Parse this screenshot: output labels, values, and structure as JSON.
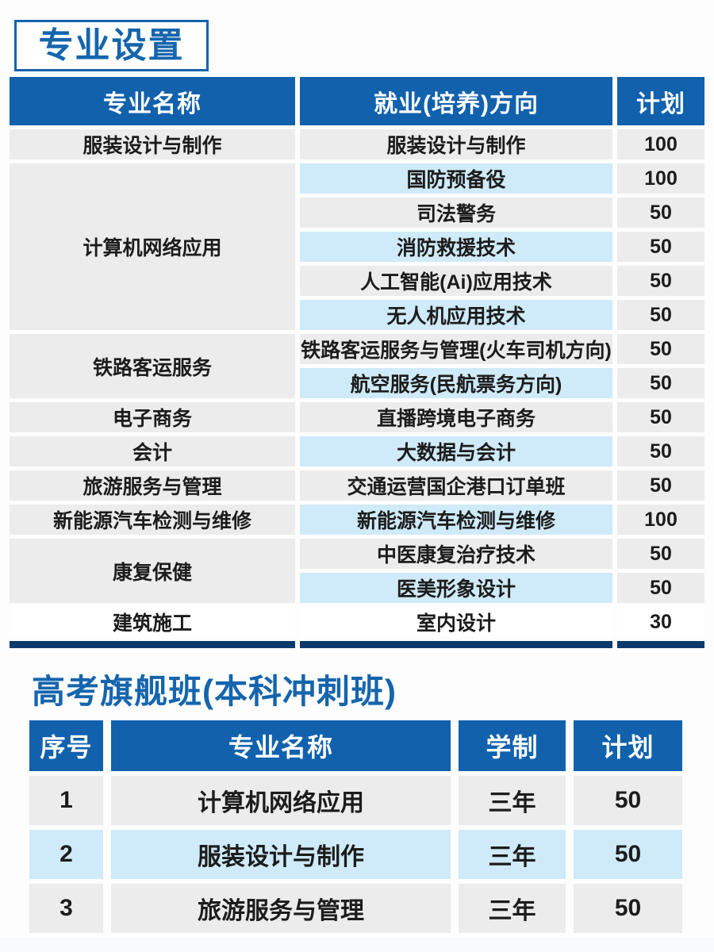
{
  "page": {
    "title1": "专业设置",
    "title2": "高考旗舰班(本科冲刺班)"
  },
  "colors": {
    "header_blue": "#1161ad",
    "title_blue": "#1565ad",
    "navy_bar": "#0d3a6d",
    "light_blue": "#cfeaf8",
    "light_gray": "#ececec"
  },
  "table1": {
    "headers": [
      "专业名称",
      "就业(培养)方向",
      "计划"
    ],
    "groups": [
      {
        "major": "服装设计与制作",
        "rows": [
          {
            "direction": "服装设计与制作",
            "plan": "100",
            "highlight": false
          }
        ]
      },
      {
        "major": "计算机网络应用",
        "rows": [
          {
            "direction": "国防预备役",
            "plan": "100",
            "highlight": true
          },
          {
            "direction": "司法警务",
            "plan": "50",
            "highlight": false
          },
          {
            "direction": "消防救援技术",
            "plan": "50",
            "highlight": true
          },
          {
            "direction": "人工智能(Ai)应用技术",
            "plan": "50",
            "highlight": false
          },
          {
            "direction": "无人机应用技术",
            "plan": "50",
            "highlight": true
          }
        ]
      },
      {
        "major": "铁路客运服务",
        "rows": [
          {
            "direction": "铁路客运服务与管理(火车司机方向)",
            "plan": "50",
            "highlight": false
          },
          {
            "direction": "航空服务(民航票务方向)",
            "plan": "50",
            "highlight": true
          }
        ]
      },
      {
        "major": "电子商务",
        "rows": [
          {
            "direction": "直播跨境电子商务",
            "plan": "50",
            "highlight": false
          }
        ]
      },
      {
        "major": "会计",
        "rows": [
          {
            "direction": "大数据与会计",
            "plan": "50",
            "highlight": true
          }
        ]
      },
      {
        "major": "旅游服务与管理",
        "rows": [
          {
            "direction": "交通运营国企港口订单班",
            "plan": "50",
            "highlight": false
          }
        ]
      },
      {
        "major": "新能源汽车检测与维修",
        "rows": [
          {
            "direction": "新能源汽车检测与维修",
            "plan": "100",
            "highlight": true
          }
        ]
      },
      {
        "major": "康复保健",
        "rows": [
          {
            "direction": "中医康复治疗技术",
            "plan": "50",
            "highlight": false
          },
          {
            "direction": "医美形象设计",
            "plan": "50",
            "highlight": true
          }
        ]
      },
      {
        "major": "建筑施工",
        "white": true,
        "rows": [
          {
            "direction": "室内设计",
            "plan": "30",
            "highlight": false
          }
        ]
      }
    ]
  },
  "table2": {
    "headers": [
      "序号",
      "专业名称",
      "学制",
      "计划"
    ],
    "rows": [
      {
        "no": "1",
        "major": "计算机网络应用",
        "duration": "三年",
        "plan": "50",
        "highlight": false
      },
      {
        "no": "2",
        "major": "服装设计与制作",
        "duration": "三年",
        "plan": "50",
        "highlight": true
      },
      {
        "no": "3",
        "major": "旅游服务与管理",
        "duration": "三年",
        "plan": "50",
        "highlight": false
      }
    ]
  }
}
